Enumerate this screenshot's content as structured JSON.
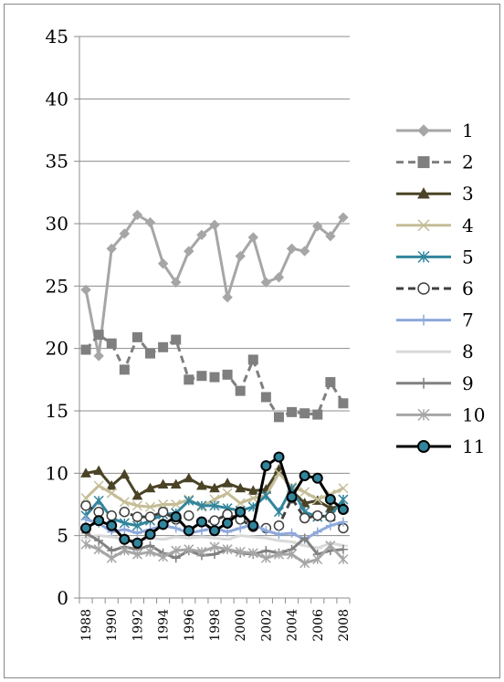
{
  "chart_data": {
    "type": "line",
    "title": "",
    "xlabel": "",
    "ylabel": "",
    "ylim": [
      0,
      45
    ],
    "y_ticks": [
      "0",
      "5",
      "10",
      "15",
      "20",
      "25",
      "30",
      "35",
      "40",
      "45"
    ],
    "x": [
      1988,
      1989,
      1990,
      1991,
      1992,
      1993,
      1994,
      1995,
      1996,
      1997,
      1998,
      1999,
      2000,
      2001,
      2002,
      2003,
      2004,
      2005,
      2006,
      2007,
      2008
    ],
    "x_tick_labels": [
      "1988",
      "1990",
      "1992",
      "1994",
      "1996",
      "1998",
      "2000",
      "2002",
      "2004",
      "2006",
      "2008"
    ],
    "grid": "horizontal",
    "legend_position": "right",
    "series": [
      {
        "name": "1",
        "color": "#a6a6a6",
        "marker": "diamond",
        "dash": "solid",
        "values": [
          24.7,
          19.4,
          28.0,
          29.2,
          30.7,
          30.1,
          26.8,
          25.3,
          27.8,
          29.1,
          29.9,
          24.1,
          27.4,
          28.9,
          25.3,
          25.7,
          28.0,
          27.8,
          29.8,
          29.0,
          30.5
        ]
      },
      {
        "name": "2",
        "color": "#7f7f7f",
        "marker": "square",
        "dash": "dashed",
        "values": [
          19.9,
          21.1,
          20.4,
          18.3,
          20.9,
          19.6,
          20.1,
          20.7,
          17.5,
          17.8,
          17.7,
          17.9,
          16.6,
          19.1,
          16.1,
          14.5,
          14.9,
          14.8,
          14.7,
          17.3,
          15.6
        ]
      },
      {
        "name": "3",
        "color": "#4a4326",
        "marker": "triangle",
        "dash": "solid",
        "values": [
          10.0,
          10.2,
          9.0,
          9.9,
          8.2,
          8.8,
          9.1,
          9.1,
          9.6,
          9.0,
          8.8,
          9.2,
          8.8,
          8.6,
          8.7,
          10.3,
          8.6,
          7.6,
          7.8,
          7.2,
          7.4
        ]
      },
      {
        "name": "4",
        "color": "#c4bd97",
        "marker": "x",
        "dash": "solid",
        "values": [
          8.0,
          9.0,
          8.4,
          7.7,
          7.4,
          7.3,
          7.5,
          7.5,
          7.9,
          7.3,
          7.9,
          8.4,
          7.6,
          8.0,
          8.2,
          10.0,
          8.9,
          8.5,
          7.9,
          8.3,
          8.8
        ]
      },
      {
        "name": "5",
        "color": "#31859c",
        "marker": "asterisk",
        "dash": "solid",
        "values": [
          6.6,
          7.8,
          6.4,
          6.0,
          5.8,
          6.2,
          6.7,
          6.8,
          7.8,
          7.4,
          7.4,
          7.2,
          7.0,
          7.3,
          8.2,
          6.9,
          8.8,
          6.9,
          6.5,
          6.6,
          7.9
        ]
      },
      {
        "name": "6",
        "color": "#404040",
        "marker": "circle-open",
        "dash": "dashed",
        "values": [
          7.4,
          6.9,
          6.6,
          6.9,
          6.5,
          6.5,
          6.9,
          6.3,
          6.6,
          6.1,
          6.2,
          6.7,
          6.3,
          5.7,
          5.6,
          5.8,
          8.0,
          6.4,
          6.6,
          6.5,
          5.6
        ]
      },
      {
        "name": "7",
        "color": "#8ea9db",
        "marker": "plus",
        "dash": "solid",
        "values": [
          6.3,
          6.0,
          5.3,
          5.5,
          5.2,
          5.5,
          5.8,
          5.6,
          5.2,
          5.4,
          5.6,
          5.3,
          5.6,
          5.9,
          5.4,
          5.1,
          5.2,
          4.7,
          5.3,
          5.8,
          6.1
        ]
      },
      {
        "name": "8",
        "color": "#d9d9d9",
        "marker": "dash",
        "dash": "solid",
        "values": [
          4.8,
          5.0,
          4.9,
          4.7,
          4.6,
          4.8,
          4.7,
          4.9,
          4.8,
          4.9,
          4.8,
          4.7,
          5.0,
          4.9,
          4.8,
          4.6,
          4.5,
          4.2,
          4.0,
          4.4,
          4.2
        ]
      },
      {
        "name": "9",
        "color": "#808080",
        "marker": "plus",
        "dash": "solid",
        "values": [
          5.2,
          4.6,
          3.8,
          4.1,
          3.9,
          4.2,
          3.6,
          3.2,
          3.8,
          3.4,
          3.5,
          3.9,
          3.6,
          3.5,
          3.8,
          3.6,
          3.9,
          4.8,
          3.5,
          3.8,
          3.9
        ]
      },
      {
        "name": "10",
        "color": "#a6a6a6",
        "marker": "asterisk",
        "dash": "solid",
        "values": [
          4.3,
          3.9,
          3.2,
          3.8,
          3.5,
          3.7,
          3.3,
          3.8,
          3.9,
          3.7,
          4.1,
          3.9,
          3.7,
          3.6,
          3.2,
          3.5,
          3.5,
          2.8,
          3.1,
          4.2,
          3.1
        ]
      },
      {
        "name": "11",
        "color": "#000000",
        "marker": "circle-filled",
        "dash": "solid",
        "values": [
          5.6,
          6.2,
          5.8,
          4.7,
          4.4,
          5.1,
          5.9,
          6.5,
          5.4,
          6.1,
          5.4,
          6.0,
          6.9,
          5.8,
          10.6,
          11.3,
          8.1,
          9.8,
          9.6,
          7.9,
          7.1
        ]
      }
    ]
  }
}
